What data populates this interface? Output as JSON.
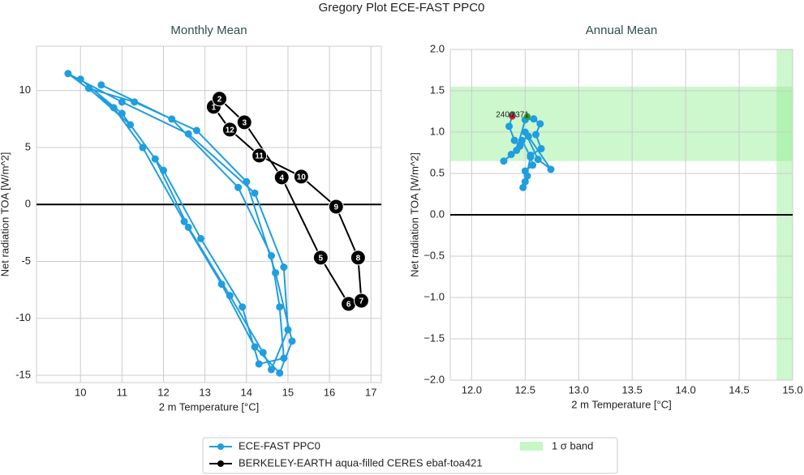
{
  "title": "Gregory Plot ECE-FAST PPC0",
  "chart_data": [
    {
      "type": "line",
      "title": "Monthly Mean",
      "xlabel": "2 m Temperature [°C]",
      "ylabel": "Net radiation TOA [W/m^2]",
      "xlim": [
        8.94,
        17.25
      ],
      "ylim": [
        -15.64,
        13.9
      ],
      "xticks": [
        10,
        11,
        12,
        13,
        14,
        15,
        16,
        17
      ],
      "yticks": [
        -15,
        -10,
        -5,
        0,
        5,
        10
      ],
      "grid": true,
      "hline": 0,
      "series": [
        {
          "name": "ECE-FAST PPC0",
          "color": "#1f9ee0",
          "x": [
            10.0,
            11.0,
            11.8,
            12.6,
            13.6,
            14.4,
            14.6,
            15.0,
            14.9,
            14.2,
            12.6,
            11.0,
            9.7,
            10.8,
            11.5,
            12.5,
            13.4,
            14.2,
            14.8,
            15.1,
            14.7,
            14.0,
            12.8,
            11.3,
            10.2,
            11.2,
            12.0,
            12.9,
            13.9,
            14.3,
            14.9,
            14.8,
            14.6,
            13.8,
            12.2,
            10.5
          ],
          "values": [
            11.0,
            8.0,
            4.0,
            -2.0,
            -8.0,
            -13.0,
            -14.5,
            -11.0,
            -5.5,
            1.0,
            6.2,
            9.0,
            11.5,
            8.5,
            5.0,
            -1.5,
            -7.0,
            -12.5,
            -14.8,
            -12.0,
            -6.0,
            2.0,
            6.5,
            9.0,
            10.2,
            7.0,
            3.0,
            -3.0,
            -9.0,
            -14.0,
            -13.5,
            -9.0,
            -4.5,
            1.5,
            7.5,
            10.5
          ]
        },
        {
          "name": "BERKELEY-EARTH aqua-filled CERES ebaf-toa421",
          "color": "#000000",
          "closed": true,
          "x": [
            13.21,
            13.35,
            13.95,
            14.85,
            15.79,
            16.46,
            16.77,
            16.69,
            16.16,
            15.32,
            14.31,
            13.6
          ],
          "values": [
            8.58,
            9.29,
            7.22,
            2.38,
            -4.67,
            -8.73,
            -8.45,
            -4.67,
            -0.19,
            2.45,
            4.3,
            6.58
          ],
          "point_labels": [
            "1",
            "2",
            "3",
            "4",
            "5",
            "6",
            "7",
            "8",
            "9",
            "10",
            "11",
            "12"
          ]
        }
      ]
    },
    {
      "type": "line",
      "title": "Annual Mean",
      "xlabel": "2 m Temperature [°C]",
      "ylabel": "Net radiation TOA [W/m^2]",
      "xlim": [
        11.8,
        15.0
      ],
      "ylim": [
        -2.0,
        2.0
      ],
      "xticks": [
        {
          "value": 12,
          "label": "12.0"
        },
        {
          "value": 12.5,
          "label": "12.5"
        },
        {
          "value": 13,
          "label": "13.0"
        },
        {
          "value": 13.5,
          "label": "13.5"
        },
        {
          "value": 14,
          "label": "14.0"
        },
        {
          "value": 14.5,
          "label": "14.5"
        },
        {
          "value": 15,
          "label": "15.0"
        }
      ],
      "yticks": [
        {
          "value": -2,
          "label": "−2.0"
        },
        {
          "value": -1.5,
          "label": "−1.5"
        },
        {
          "value": -1,
          "label": "−1.0"
        },
        {
          "value": -0.5,
          "label": "−0.5"
        },
        {
          "value": 0,
          "label": "0.0"
        },
        {
          "value": 0.5,
          "label": "0.5"
        },
        {
          "value": 1,
          "label": "1.0"
        },
        {
          "value": 1.5,
          "label": "1.5"
        },
        {
          "value": 2,
          "label": "2.0"
        }
      ],
      "grid": true,
      "hline": 0,
      "band_name": "1 σ band",
      "band_color": "#90ee90",
      "bands": [
        {
          "axis": "y",
          "range": [
            0.65,
            1.55
          ]
        },
        {
          "axis": "x",
          "range": [
            14.85,
            15.0
          ]
        }
      ],
      "series": [
        {
          "name": "ECE-FAST PPC0",
          "color": "#1f9ee0",
          "x": [
            12.38,
            12.35,
            12.4,
            12.45,
            12.37,
            12.3,
            12.42,
            12.5,
            12.58,
            12.64,
            12.6,
            12.65,
            12.55,
            12.57,
            12.5,
            12.52,
            12.48,
            12.5,
            12.55,
            12.47,
            12.53,
            12.74,
            12.62,
            12.5
          ],
          "values": [
            1.2,
            1.07,
            0.9,
            0.83,
            0.73,
            0.65,
            0.78,
            1.15,
            1.16,
            1.1,
            0.97,
            0.8,
            0.72,
            0.6,
            0.53,
            0.47,
            0.33,
            0.4,
            0.7,
            0.9,
            0.95,
            0.55,
            0.67,
            1.0
          ]
        }
      ],
      "annotations": [
        {
          "text": "2400",
          "x": 12.38,
          "y": 1.19,
          "color": "#d62728"
        },
        {
          "text": "2371",
          "x": 12.52,
          "y": 1.19,
          "color": "#2ca02c"
        }
      ]
    }
  ]
}
